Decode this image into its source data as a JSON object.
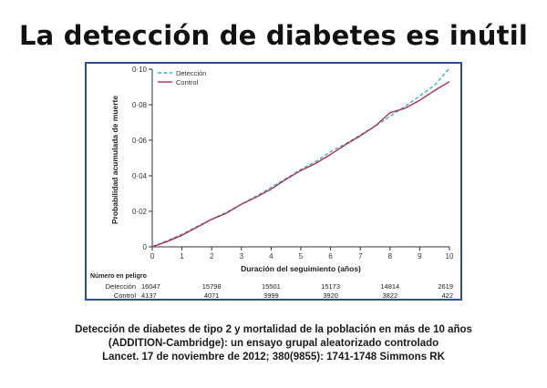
{
  "page_title": "La detección de diabetes es inútil",
  "caption": {
    "line1": "Detección de diabetes de tipo 2 y mortalidad de la población en más de 10 años",
    "line2": "(ADDITION-Cambridge): un ensayo grupal aleatorizado controlado",
    "line3": "Lancet. 17 de noviembre de 2012; 380(9855): 1741-1748 Simmons RK"
  },
  "chart_data": {
    "type": "line",
    "title": "",
    "xlabel": "Duración del seguimiento (años)",
    "ylabel": "Probabilidad acumulada de muerte",
    "xlim": [
      0,
      10
    ],
    "ylim": [
      0,
      0.1
    ],
    "x_ticks": [
      "0",
      "1",
      "2",
      "3",
      "4",
      "5",
      "6",
      "7",
      "8",
      "9",
      "10"
    ],
    "y_ticks": [
      "0",
      "0·02",
      "0·04",
      "0·06",
      "0·08",
      "0·10"
    ],
    "legend_position": "top-left",
    "series": [
      {
        "name": "Detección",
        "color": "#35b4c8",
        "style": "dashed",
        "x": [
          0,
          0.5,
          1,
          1.5,
          2,
          2.5,
          3,
          3.5,
          4,
          4.5,
          5,
          5.5,
          6,
          6.5,
          7,
          7.5,
          8,
          8.5,
          9,
          9.5,
          10
        ],
        "y": [
          0,
          0.0035,
          0.007,
          0.0115,
          0.0155,
          0.0195,
          0.024,
          0.0285,
          0.0335,
          0.0385,
          0.0435,
          0.048,
          0.0535,
          0.058,
          0.063,
          0.068,
          0.0735,
          0.079,
          0.085,
          0.091,
          0.1005
        ]
      },
      {
        "name": "Control",
        "color": "#b0304e",
        "style": "solid",
        "x": [
          0,
          0.5,
          1,
          1.5,
          2,
          2.5,
          3,
          3.5,
          4,
          4.5,
          5,
          5.5,
          6,
          6.5,
          7,
          7.5,
          8,
          8.5,
          9,
          9.5,
          10
        ],
        "y": [
          0,
          0.003,
          0.0065,
          0.011,
          0.0155,
          0.019,
          0.024,
          0.028,
          0.0325,
          0.038,
          0.043,
          0.047,
          0.052,
          0.0575,
          0.0625,
          0.068,
          0.0755,
          0.078,
          0.0825,
          0.088,
          0.093
        ]
      }
    ],
    "risk_table": {
      "title": "Número en peligro",
      "rows": [
        {
          "label": "Detección",
          "values": [
            {
              "x": 0,
              "v": "16047"
            },
            {
              "x": 2,
              "v": "15798"
            },
            {
              "x": 4,
              "v": "15501"
            },
            {
              "x": 6,
              "v": "15173"
            },
            {
              "x": 8,
              "v": "14814"
            },
            {
              "x": 10,
              "v": "2619"
            }
          ]
        },
        {
          "label": "Control",
          "values": [
            {
              "x": 0,
              "v": "4137"
            },
            {
              "x": 2,
              "v": "4071"
            },
            {
              "x": 4,
              "v": "3999"
            },
            {
              "x": 6,
              "v": "3920"
            },
            {
              "x": 8,
              "v": "3822"
            },
            {
              "x": 10,
              "v": "422"
            }
          ]
        }
      ]
    }
  }
}
